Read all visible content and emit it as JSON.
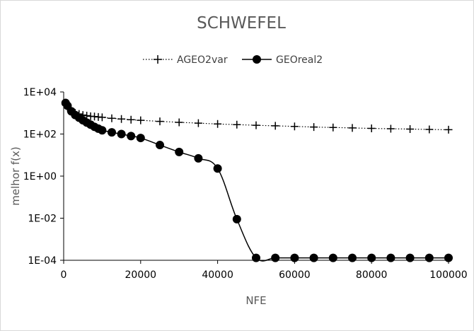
{
  "chart_data": {
    "type": "line",
    "title": "SCHWEFEL",
    "xlabel": "NFE",
    "ylabel": "melhor f(x)",
    "yscale": "log",
    "xlim": [
      0,
      100000
    ],
    "ylim": [
      0.0001,
      10000
    ],
    "x_ticks": [
      "0",
      "20000",
      "40000",
      "60000",
      "80000",
      "100000"
    ],
    "y_ticks": [
      "1E-04",
      "1E-02",
      "1E+00",
      "1E+02",
      "1E+04"
    ],
    "grid": false,
    "legend_position": "top",
    "series": [
      {
        "name": "AGEO2var",
        "color": "#000000",
        "line_style": "dotted",
        "marker": "plus",
        "points": [
          [
            500,
            2500
          ],
          [
            1000,
            1800
          ],
          [
            2000,
            1200
          ],
          [
            3000,
            1000
          ],
          [
            4000,
            900
          ],
          [
            5000,
            800
          ],
          [
            6000,
            750
          ],
          [
            7000,
            700
          ],
          [
            8000,
            680
          ],
          [
            9000,
            650
          ],
          [
            10000,
            620
          ],
          [
            12500,
            560
          ],
          [
            15000,
            520
          ],
          [
            17500,
            480
          ],
          [
            20000,
            450
          ],
          [
            25000,
            400
          ],
          [
            30000,
            360
          ],
          [
            35000,
            330
          ],
          [
            40000,
            300
          ],
          [
            45000,
            280
          ],
          [
            50000,
            260
          ],
          [
            55000,
            245
          ],
          [
            60000,
            230
          ],
          [
            65000,
            215
          ],
          [
            70000,
            205
          ],
          [
            75000,
            195
          ],
          [
            80000,
            185
          ],
          [
            85000,
            178
          ],
          [
            90000,
            172
          ],
          [
            95000,
            165
          ],
          [
            100000,
            160
          ]
        ]
      },
      {
        "name": "GEOreal2",
        "color": "#000000",
        "line_style": "solid",
        "marker": "circle",
        "points": [
          [
            500,
            3000
          ],
          [
            1000,
            2200
          ],
          [
            2000,
            1200
          ],
          [
            3000,
            800
          ],
          [
            4000,
            600
          ],
          [
            5000,
            450
          ],
          [
            6000,
            350
          ],
          [
            7000,
            280
          ],
          [
            8000,
            220
          ],
          [
            9000,
            180
          ],
          [
            10000,
            150
          ],
          [
            12500,
            120
          ],
          [
            15000,
            100
          ],
          [
            17500,
            80
          ],
          [
            20000,
            65
          ],
          [
            25000,
            30
          ],
          [
            30000,
            14
          ],
          [
            35000,
            7
          ],
          [
            40000,
            2.3
          ],
          [
            45000,
            0.009
          ],
          [
            50000,
            0.00013
          ],
          [
            55000,
            0.00013
          ],
          [
            60000,
            0.00013
          ],
          [
            65000,
            0.00013
          ],
          [
            70000,
            0.00013
          ],
          [
            75000,
            0.00013
          ],
          [
            80000,
            0.00013
          ],
          [
            85000,
            0.00013
          ],
          [
            90000,
            0.00013
          ],
          [
            95000,
            0.00013
          ],
          [
            100000,
            0.00013
          ]
        ]
      }
    ]
  }
}
